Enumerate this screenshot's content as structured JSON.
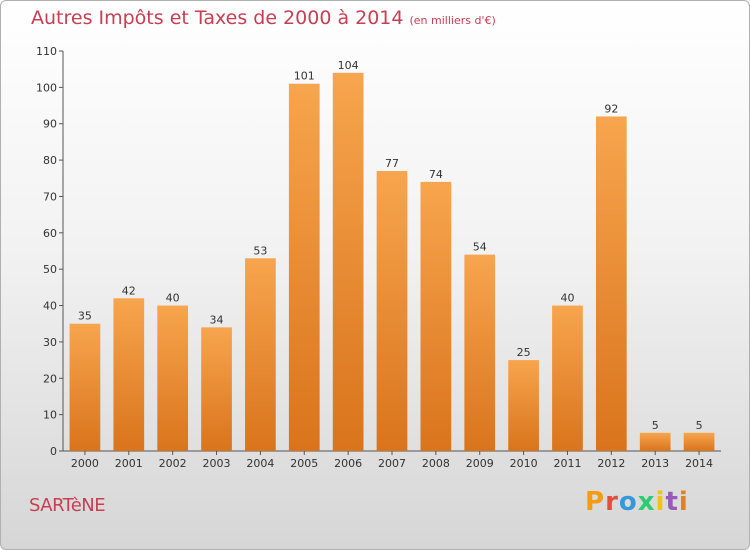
{
  "header": {
    "title": "Autres Impôts et Taxes de 2000 à 2014",
    "subtitle": "(en milliers d'€)"
  },
  "footer": {
    "place": "SARTèNE",
    "brand": "Proxiti",
    "brand_colors": [
      "#f39c12",
      "#e74c3c",
      "#3498db",
      "#2ecc71",
      "#f1c40f",
      "#9b59b6",
      "#e67e22"
    ]
  },
  "chart_data": {
    "type": "bar",
    "categories": [
      "2000",
      "2001",
      "2002",
      "2003",
      "2004",
      "2005",
      "2006",
      "2007",
      "2008",
      "2009",
      "2010",
      "2011",
      "2012",
      "2013",
      "2014"
    ],
    "values": [
      35,
      42,
      40,
      34,
      53,
      101,
      104,
      77,
      74,
      54,
      25,
      40,
      92,
      5,
      5
    ],
    "ylim": [
      0,
      110
    ],
    "yticks": [
      0,
      10,
      20,
      30,
      40,
      50,
      60,
      70,
      80,
      90,
      100,
      110
    ],
    "grid": false,
    "bar_color_top": "#f7a54e",
    "bar_color_bottom": "#d9741c",
    "text_color": "#333333"
  }
}
